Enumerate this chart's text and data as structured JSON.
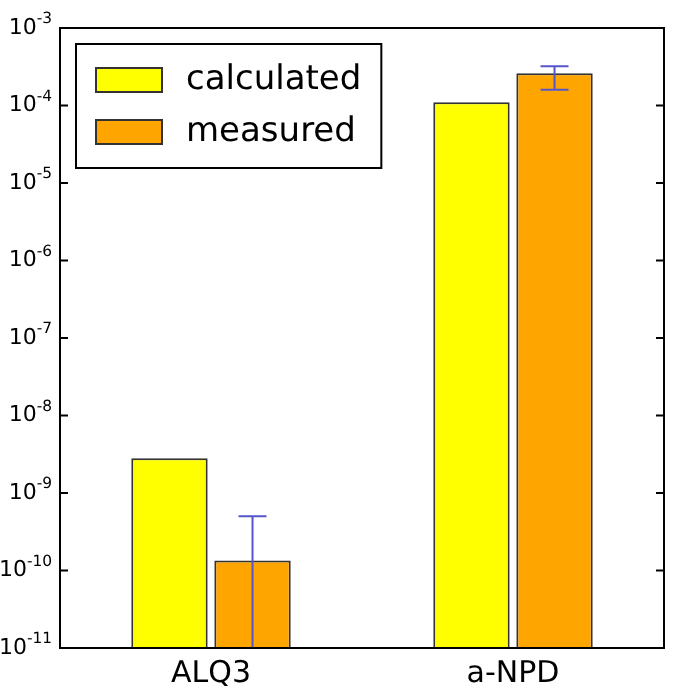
{
  "chart_data": {
    "type": "bar",
    "categories": [
      "ALQ3",
      "a-NPD"
    ],
    "series": [
      {
        "name": "calculated",
        "color": "#ffff00",
        "values": [
          2.8e-09,
          0.00011
        ]
      },
      {
        "name": "measured",
        "color": "#ffa500",
        "values": [
          1.35e-10,
          0.00026
        ],
        "errors": [
          [
            1e-11,
            5e-10
          ],
          [
            0.00016,
            0.00032
          ]
        ]
      }
    ],
    "log": "y",
    "ylim": [
      1e-11,
      0.001
    ],
    "yticks": [
      {
        "value": 1e-11,
        "label": "10$^{-11}$"
      },
      {
        "value": 1e-10,
        "label": "10$^{-10}$"
      },
      {
        "value": 1e-09,
        "label": "10$^{-9}$"
      },
      {
        "value": 1e-08,
        "label": "10$^{-8}$"
      },
      {
        "value": 1e-07,
        "label": "10$^{-7}$"
      },
      {
        "value": 1e-06,
        "label": "10$^{-6}$"
      },
      {
        "value": 1e-05,
        "label": "10$^{-5}$"
      },
      {
        "value": 0.0001,
        "label": "10$^{-4}$"
      },
      {
        "value": 0.001,
        "label": "10$^{-3}$"
      }
    ],
    "grid": false,
    "legend": "top left"
  }
}
